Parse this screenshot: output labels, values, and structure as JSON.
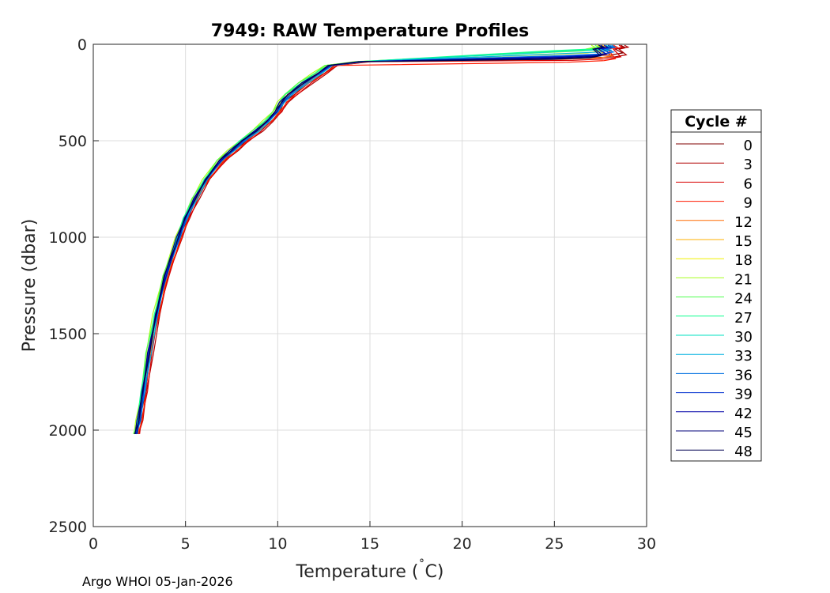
{
  "chart_data": {
    "type": "line",
    "title": "7949: RAW Temperature Profiles",
    "xlabel": "Temperature (",
    "xlabel_unit": "C)",
    "xlabel_degree": "˚",
    "ylabel": "Pressure (dbar)",
    "xlim": [
      0,
      30
    ],
    "ylim": [
      0,
      2500
    ],
    "y_reversed": true,
    "grid": true,
    "x_ticks": [
      0,
      5,
      10,
      15,
      20,
      25,
      30
    ],
    "y_ticks": [
      0,
      500,
      1000,
      1500,
      2000,
      2500
    ],
    "legend_title": "Cycle #",
    "legend_placement": "right",
    "series": [
      {
        "name": "0",
        "color": "#800000",
        "tshift": 0.2,
        "mld": 55,
        "sst": 28.6
      },
      {
        "name": "3",
        "color": "#b00000",
        "tshift": 0.35,
        "mld": 65,
        "sst": 28.8
      },
      {
        "name": "6",
        "color": "#d80000",
        "tshift": 0.3,
        "mld": 75,
        "sst": 28.5
      },
      {
        "name": "9",
        "color": "#ff1a00",
        "tshift": 0.25,
        "mld": 85,
        "sst": 28.2
      },
      {
        "name": "12",
        "color": "#ff6a00",
        "tshift": 0.1,
        "mld": 70,
        "sst": 28.0
      },
      {
        "name": "15",
        "color": "#ffb000",
        "tshift": 0.0,
        "mld": 60,
        "sst": 27.6
      },
      {
        "name": "18",
        "color": "#f0f000",
        "tshift": -0.1,
        "mld": 45,
        "sst": 27.3
      },
      {
        "name": "21",
        "color": "#a8ff20",
        "tshift": -0.2,
        "mld": 35,
        "sst": 27.0
      },
      {
        "name": "24",
        "color": "#50ff50",
        "tshift": -0.15,
        "mld": 30,
        "sst": 27.2
      },
      {
        "name": "27",
        "color": "#10ff90",
        "tshift": -0.1,
        "mld": 25,
        "sst": 27.4
      },
      {
        "name": "30",
        "color": "#00e0c0",
        "tshift": 0.05,
        "mld": 30,
        "sst": 27.8
      },
      {
        "name": "33",
        "color": "#00b0e0",
        "tshift": 0.15,
        "mld": 40,
        "sst": 28.0
      },
      {
        "name": "36",
        "color": "#0070e0",
        "tshift": 0.1,
        "mld": 50,
        "sst": 28.1
      },
      {
        "name": "39",
        "color": "#0030d0",
        "tshift": 0.05,
        "mld": 55,
        "sst": 27.9
      },
      {
        "name": "42",
        "color": "#0000a8",
        "tshift": 0.0,
        "mld": 60,
        "sst": 27.7
      },
      {
        "name": "45",
        "color": "#000078",
        "tshift": -0.05,
        "mld": 65,
        "sst": 27.5
      },
      {
        "name": "48",
        "color": "#000050",
        "tshift": 0.0,
        "mld": 70,
        "sst": 27.4
      }
    ],
    "base_profile": [
      {
        "p": 90,
        "t": 14.5
      },
      {
        "p": 110,
        "t": 12.8
      },
      {
        "p": 150,
        "t": 12.2
      },
      {
        "p": 200,
        "t": 11.4
      },
      {
        "p": 260,
        "t": 10.6
      },
      {
        "p": 300,
        "t": 10.2
      },
      {
        "p": 350,
        "t": 9.9
      },
      {
        "p": 400,
        "t": 9.4
      },
      {
        "p": 450,
        "t": 8.8
      },
      {
        "p": 500,
        "t": 8.1
      },
      {
        "p": 550,
        "t": 7.5
      },
      {
        "p": 600,
        "t": 6.9
      },
      {
        "p": 700,
        "t": 6.1
      },
      {
        "p": 800,
        "t": 5.5
      },
      {
        "p": 900,
        "t": 5.0
      },
      {
        "p": 1000,
        "t": 4.6
      },
      {
        "p": 1200,
        "t": 3.9
      },
      {
        "p": 1400,
        "t": 3.4
      },
      {
        "p": 1600,
        "t": 3.0
      },
      {
        "p": 1800,
        "t": 2.7
      },
      {
        "p": 1950,
        "t": 2.45
      },
      {
        "p": 2020,
        "t": 2.3
      }
    ]
  },
  "footer": {
    "text": "Argo WHOI 05-Jan-2026"
  }
}
